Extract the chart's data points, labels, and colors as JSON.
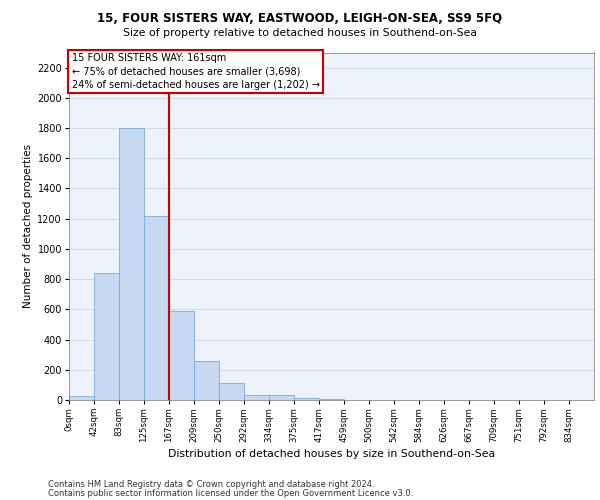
{
  "title1": "15, FOUR SISTERS WAY, EASTWOOD, LEIGH-ON-SEA, SS9 5FQ",
  "title2": "Size of property relative to detached houses in Southend-on-Sea",
  "xlabel": "Distribution of detached houses by size in Southend-on-Sea",
  "ylabel": "Number of detached properties",
  "footer1": "Contains HM Land Registry data © Crown copyright and database right 2024.",
  "footer2": "Contains public sector information licensed under the Open Government Licence v3.0.",
  "bar_labels": [
    "0sqm",
    "42sqm",
    "83sqm",
    "125sqm",
    "167sqm",
    "209sqm",
    "250sqm",
    "292sqm",
    "334sqm",
    "375sqm",
    "417sqm",
    "459sqm",
    "500sqm",
    "542sqm",
    "584sqm",
    "626sqm",
    "667sqm",
    "709sqm",
    "751sqm",
    "792sqm",
    "834sqm"
  ],
  "bar_values": [
    25,
    840,
    1800,
    1220,
    590,
    255,
    110,
    35,
    30,
    15,
    5,
    0,
    0,
    0,
    0,
    0,
    0,
    0,
    0,
    0,
    0
  ],
  "bar_color": "#c6d9f0",
  "bar_edge_color": "#7aabda",
  "ylim": [
    0,
    2300
  ],
  "yticks": [
    0,
    200,
    400,
    600,
    800,
    1000,
    1200,
    1400,
    1600,
    1800,
    2000,
    2200
  ],
  "property_line_x": 4,
  "property_line_label": "15 FOUR SISTERS WAY: 161sqm",
  "annotation_line1": "← 75% of detached houses are smaller (3,698)",
  "annotation_line2": "24% of semi-detached houses are larger (1,202) →",
  "annotation_box_color": "#ffffff",
  "annotation_box_edge": "#cc0000",
  "vline_color": "#cc0000",
  "grid_color": "#d0d8e8",
  "background_color": "#edf2fb"
}
